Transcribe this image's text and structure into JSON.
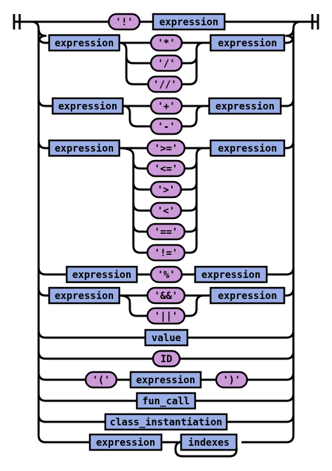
{
  "diagram": {
    "alternatives": [
      {
        "id": "unary-not",
        "items": [
          {
            "kind": "terminal",
            "text": "'!'"
          },
          {
            "kind": "nonterminal",
            "text": "expression"
          }
        ]
      },
      {
        "id": "mul",
        "items": [
          {
            "kind": "nonterminal",
            "text": "expression"
          },
          {
            "kind": "choice",
            "options": [
              "'*'",
              "'/'",
              "'//'"
            ]
          },
          {
            "kind": "nonterminal",
            "text": "expression"
          }
        ]
      },
      {
        "id": "add",
        "items": [
          {
            "kind": "nonterminal",
            "text": "expression"
          },
          {
            "kind": "choice",
            "options": [
              "'+'",
              "'-'"
            ]
          },
          {
            "kind": "nonterminal",
            "text": "expression"
          }
        ]
      },
      {
        "id": "compare",
        "items": [
          {
            "kind": "nonterminal",
            "text": "expression"
          },
          {
            "kind": "choice",
            "options": [
              "'>='",
              "'<='",
              "'>'",
              "'<'",
              "'=='",
              "'!='"
            ]
          },
          {
            "kind": "nonterminal",
            "text": "expression"
          }
        ]
      },
      {
        "id": "mod",
        "items": [
          {
            "kind": "nonterminal",
            "text": "expression"
          },
          {
            "kind": "terminal",
            "text": "'%'"
          },
          {
            "kind": "nonterminal",
            "text": "expression"
          }
        ]
      },
      {
        "id": "logic",
        "items": [
          {
            "kind": "nonterminal",
            "text": "expression"
          },
          {
            "kind": "choice",
            "options": [
              "'&&'",
              "'||'"
            ]
          },
          {
            "kind": "nonterminal",
            "text": "expression"
          }
        ]
      },
      {
        "id": "value",
        "items": [
          {
            "kind": "nonterminal",
            "text": "value"
          }
        ]
      },
      {
        "id": "id",
        "items": [
          {
            "kind": "terminal",
            "text": "ID"
          }
        ]
      },
      {
        "id": "paren",
        "items": [
          {
            "kind": "terminal",
            "text": "'('"
          },
          {
            "kind": "nonterminal",
            "text": "expression"
          },
          {
            "kind": "terminal",
            "text": "')'"
          }
        ]
      },
      {
        "id": "fun-call",
        "items": [
          {
            "kind": "nonterminal",
            "text": "fun_call"
          }
        ]
      },
      {
        "id": "class-inst",
        "items": [
          {
            "kind": "nonterminal",
            "text": "class_instantiation"
          }
        ]
      },
      {
        "id": "indexed",
        "items": [
          {
            "kind": "nonterminal",
            "text": "expression"
          },
          {
            "kind": "loop",
            "text": "indexes"
          }
        ]
      }
    ],
    "colors": {
      "nonterminal_fill": "#9aaee6",
      "terminal_fill": "#cc9ad9",
      "line": "#000000"
    }
  }
}
